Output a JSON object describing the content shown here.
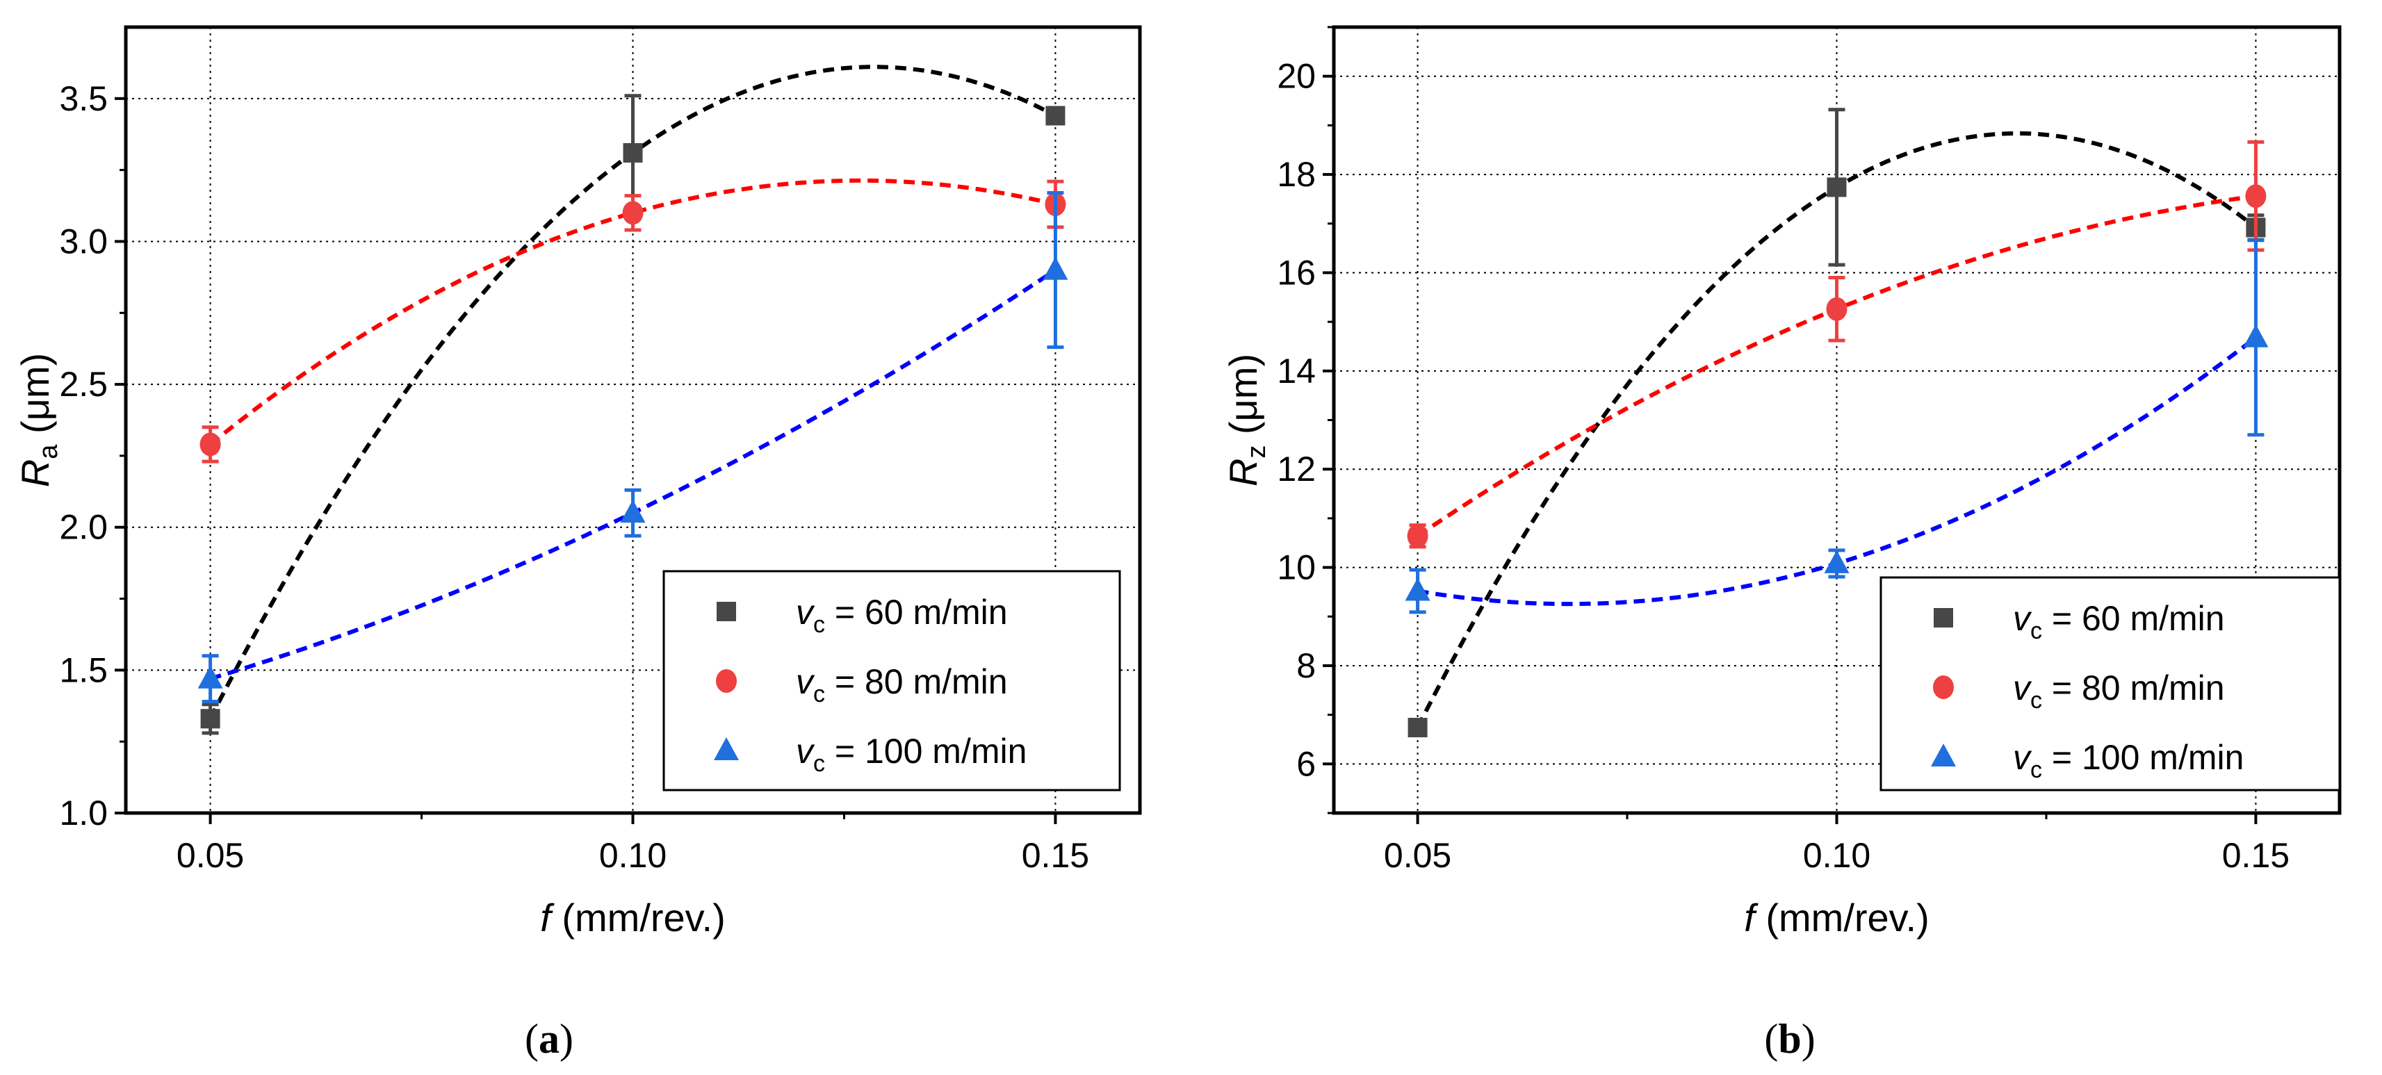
{
  "chart_data": [
    {
      "type": "scatter",
      "panel_label": {
        "open": "(",
        "letter": "a",
        "close": ")"
      },
      "xlabel": {
        "var": "f",
        "text": " (mm/rev.)"
      },
      "ylabel": {
        "var": "R",
        "sub": "a",
        "text": " (μm)"
      },
      "xlim": [
        0.04,
        0.16
      ],
      "ylim": [
        1.0,
        3.75
      ],
      "xticks": [
        0.05,
        0.1,
        0.15
      ],
      "xtick_labels": [
        "0.05",
        "0.10",
        "0.15"
      ],
      "xminor": [
        0.075,
        0.125
      ],
      "yticks": [
        1.0,
        1.5,
        2.0,
        2.5,
        3.0,
        3.5
      ],
      "ytick_labels": [
        "1.0",
        "1.5",
        "2.0",
        "2.5",
        "3.0",
        "3.5"
      ],
      "yminor": [
        1.25,
        1.75,
        2.25,
        2.75,
        3.25
      ],
      "grid": true,
      "legend_position": "bottom-right",
      "x": [
        0.05,
        0.1,
        0.15
      ],
      "series": [
        {
          "name": "vc = 60 m/min",
          "legend": {
            "var": "v",
            "sub": "c",
            "text": " = 60 m/min"
          },
          "marker": "square",
          "color": "#474747",
          "fit_color": "#000000",
          "values": [
            1.33,
            3.31,
            3.44
          ],
          "errors": [
            0.05,
            0.2,
            0.02
          ],
          "fit": "quadratic"
        },
        {
          "name": "vc = 80 m/min",
          "legend": {
            "var": "v",
            "sub": "c",
            "text": " = 80 m/min"
          },
          "marker": "circle",
          "color": "#ee4040",
          "fit_color": "#ff0000",
          "values": [
            2.29,
            3.1,
            3.13
          ],
          "errors": [
            0.06,
            0.06,
            0.08
          ],
          "fit": "quadratic"
        },
        {
          "name": "vc = 100 m/min",
          "legend": {
            "var": "v",
            "sub": "c",
            "text": " = 100 m/min"
          },
          "marker": "triangle",
          "color": "#1f6fde",
          "fit_color": "#0000ff",
          "values": [
            1.47,
            2.05,
            2.9
          ],
          "errors": [
            0.08,
            0.08,
            0.27
          ],
          "fit": "quadratic"
        }
      ]
    },
    {
      "type": "scatter",
      "panel_label": {
        "open": "(",
        "letter": "b",
        "close": ")"
      },
      "xlabel": {
        "var": "f",
        "text": " (mm/rev.)"
      },
      "ylabel": {
        "var": "R",
        "sub": "z",
        "text": " (μm)"
      },
      "xlim": [
        0.04,
        0.16
      ],
      "ylim": [
        5,
        21
      ],
      "xticks": [
        0.05,
        0.1,
        0.15
      ],
      "xtick_labels": [
        "0.05",
        "0.10",
        "0.15"
      ],
      "xminor": [
        0.075,
        0.125
      ],
      "yticks": [
        6,
        8,
        10,
        12,
        14,
        16,
        18,
        20
      ],
      "ytick_labels": [
        "6",
        "8",
        "10",
        "12",
        "14",
        "16",
        "18",
        "20"
      ],
      "yminor": [
        5,
        7,
        9,
        11,
        13,
        15,
        17,
        19,
        21
      ],
      "grid": true,
      "legend_position": "bottom-right",
      "x": [
        0.05,
        0.1,
        0.15
      ],
      "series": [
        {
          "name": "vc = 60 m/min",
          "legend": {
            "var": "v",
            "sub": "c",
            "text": " = 60 m/min"
          },
          "marker": "square",
          "color": "#474747",
          "fit_color": "#000000",
          "values": [
            6.74,
            17.74,
            16.92
          ],
          "errors": [
            0.15,
            1.58,
            0.25
          ],
          "fit": "quadratic"
        },
        {
          "name": "vc = 80 m/min",
          "legend": {
            "var": "v",
            "sub": "c",
            "text": " = 80 m/min"
          },
          "marker": "circle",
          "color": "#ee4040",
          "fit_color": "#ff0000",
          "values": [
            10.64,
            15.26,
            17.56
          ],
          "errors": [
            0.22,
            0.64,
            1.1
          ],
          "fit": "quadratic"
        },
        {
          "name": "vc = 100 m/min",
          "legend": {
            "var": "v",
            "sub": "c",
            "text": " = 100 m/min"
          },
          "marker": "triangle",
          "color": "#1f6fde",
          "fit_color": "#0000ff",
          "values": [
            9.52,
            10.08,
            14.68
          ],
          "errors": [
            0.43,
            0.27,
            1.98
          ],
          "fit": "quadratic"
        }
      ]
    }
  ]
}
